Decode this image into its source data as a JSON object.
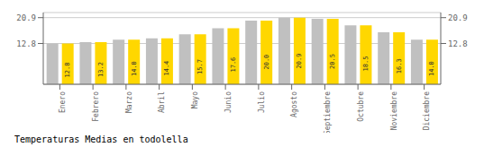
{
  "chart_data": {
    "type": "bar",
    "title": "Temperaturas Medias en todolella",
    "categories": [
      "Enero",
      "Febrero",
      "Marzo",
      "Abril",
      "Mayo",
      "Junio",
      "Julio",
      "Agosto",
      "Septiembre",
      "Octubre",
      "Noviembre",
      "Diciembre"
    ],
    "series": [
      {
        "color": "#C0C0C0",
        "values": [
          12.8,
          13.2,
          14.0,
          14.4,
          15.7,
          17.6,
          20.0,
          20.9,
          20.5,
          18.5,
          16.3,
          14.0
        ]
      },
      {
        "color": "#FFD700",
        "values": [
          12.8,
          13.2,
          14.0,
          14.4,
          15.7,
          17.6,
          20.0,
          20.9,
          20.5,
          18.5,
          16.3,
          14.0
        ],
        "data_labels": true,
        "value_labels": [
          "12.8",
          "13.2",
          "14.0",
          "14.4",
          "15.7",
          "17.6",
          "20.0",
          "20.9",
          "20.5",
          "18.5",
          "16.3",
          "14.0"
        ]
      }
    ],
    "ylim": [
      0,
      22.5
    ],
    "yticks": [
      12.8,
      20.9
    ],
    "y2lim": [
      0,
      22.5
    ],
    "y2ticks": [
      12.8,
      20.9
    ],
    "grid": true
  }
}
